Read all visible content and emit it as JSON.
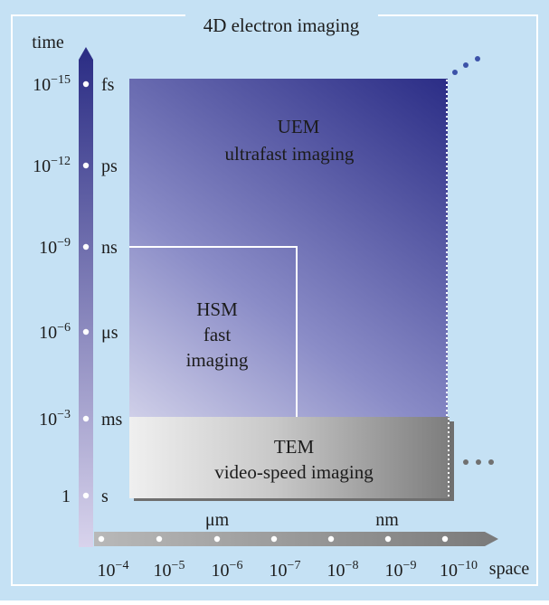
{
  "title": "4D electron imaging",
  "time_axis": {
    "label": "time",
    "ticks": [
      {
        "exp_label": "10",
        "exp_sup": "−15",
        "unit": "fs"
      },
      {
        "exp_label": "10",
        "exp_sup": "−12",
        "unit": "ps"
      },
      {
        "exp_label": "10",
        "exp_sup": "−9",
        "unit": "ns"
      },
      {
        "exp_label": "10",
        "exp_sup": "−6",
        "unit": "μs"
      },
      {
        "exp_label": "10",
        "exp_sup": "−3",
        "unit": "ms"
      },
      {
        "exp_label": "1",
        "exp_sup": "",
        "unit": "s"
      }
    ]
  },
  "space_axis": {
    "label": "space",
    "ticks": [
      {
        "base": "10",
        "sup": "−4"
      },
      {
        "base": "10",
        "sup": "−5"
      },
      {
        "base": "10",
        "sup": "−6"
      },
      {
        "base": "10",
        "sup": "−7"
      },
      {
        "base": "10",
        "sup": "−8"
      },
      {
        "base": "10",
        "sup": "−9"
      },
      {
        "base": "10",
        "sup": "−10"
      }
    ],
    "unit_labels": {
      "um": "μm",
      "nm": "nm"
    }
  },
  "regions": {
    "uem": {
      "line1": "UEM",
      "line2": "ultrafast imaging"
    },
    "hsm": {
      "line1": "HSM",
      "line2": "fast",
      "line3": "imaging"
    },
    "tem": {
      "line1": "TEM",
      "line2": "video-speed imaging"
    }
  },
  "colors": {
    "background": "#c5e1f4",
    "border": "#ffffff",
    "uem_dark": "#2d2e86",
    "uem_light": "#e9e6f4",
    "tem_light": "#ececec",
    "tem_dark": "#7f7f7f",
    "space_arrow": "#8c8c8c",
    "dots": "#3c52a8"
  }
}
